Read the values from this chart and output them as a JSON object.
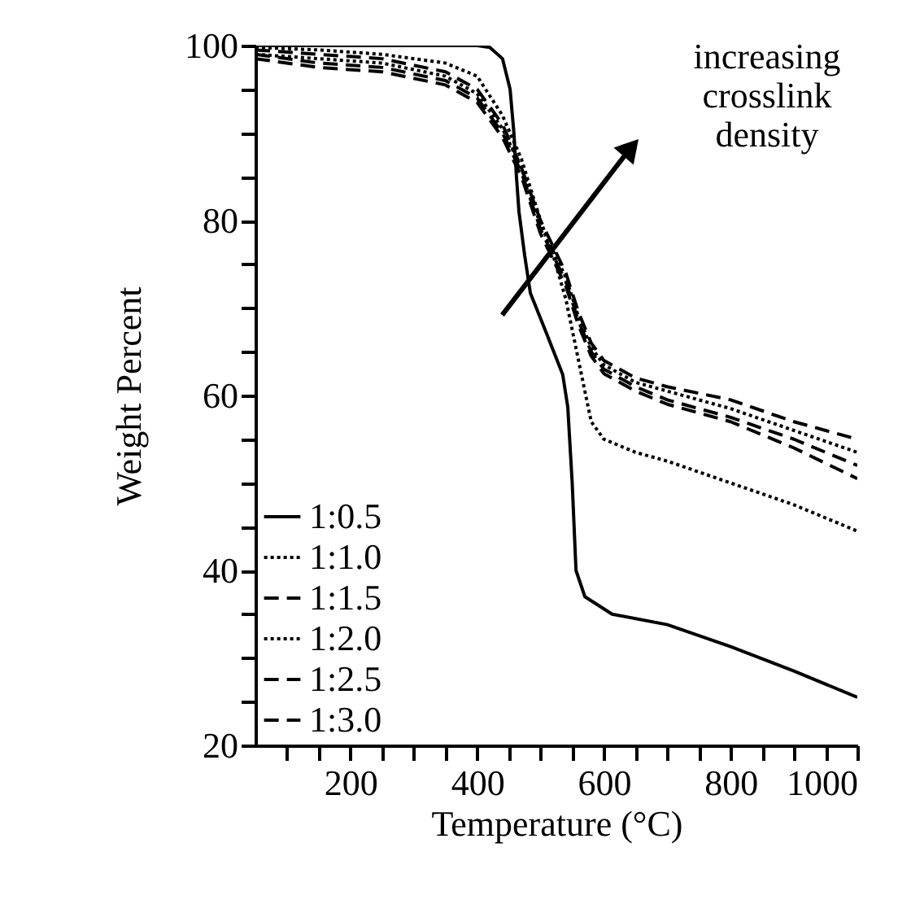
{
  "chart_data": {
    "type": "line",
    "xlabel": "Temperature (°C)",
    "ylabel": "Weight Percent",
    "xlim": [
      50,
      1000
    ],
    "ylim": [
      20,
      100
    ],
    "xticks": [
      {
        "value": 100,
        "label": null
      },
      {
        "value": 150,
        "label": null
      },
      200,
      {
        "value": 250,
        "label": null
      },
      {
        "value": 300,
        "label": null
      },
      {
        "value": 350,
        "label": null
      },
      400,
      {
        "value": 450,
        "label": null
      },
      {
        "value": 500,
        "label": null
      },
      {
        "value": 550,
        "label": null
      },
      600,
      {
        "value": 650,
        "label": null
      },
      {
        "value": 700,
        "label": null
      },
      {
        "value": 750,
        "label": null
      },
      800,
      {
        "value": 850,
        "label": null
      },
      {
        "value": 900,
        "label": null
      },
      {
        "value": 950,
        "label": null
      },
      1000
    ],
    "yticks": [
      20,
      {
        "value": 25,
        "label": null
      },
      {
        "value": 30,
        "label": null
      },
      {
        "value": 35,
        "label": null
      },
      40,
      {
        "value": 45,
        "label": null
      },
      {
        "value": 50,
        "label": null
      },
      {
        "value": 55,
        "label": null
      },
      60,
      {
        "value": 65,
        "label": null
      },
      {
        "value": 70,
        "label": null
      },
      {
        "value": 75,
        "label": null
      },
      80,
      {
        "value": 85,
        "label": null
      },
      {
        "value": 90,
        "label": null
      },
      {
        "value": 95,
        "label": null
      },
      100
    ],
    "grid": false,
    "legend": "bottom left",
    "marker": "none",
    "annotations": [
      "increasing crosslink density"
    ],
    "series": [
      {
        "name": "1:0.5",
        "color": "#000000",
        "line_style": "solid",
        "x": [
          50,
          400,
          420,
          440,
          452,
          458,
          462,
          466,
          475,
          484,
          510,
          535,
          543,
          550,
          556,
          570,
          613,
          700,
          800,
          900,
          1000
        ],
        "values": [
          100,
          100,
          99.8,
          98.5,
          95,
          90,
          85,
          81,
          76,
          71.7,
          67,
          62.4,
          58.7,
          50,
          40,
          37,
          35,
          33.8,
          31.3,
          28.5,
          25.5
        ]
      },
      {
        "name": "1:1.0",
        "color": "#000000",
        "line_style": "dotted",
        "x": [
          50,
          150,
          250,
          350,
          400,
          440,
          470,
          500,
          520,
          540,
          560,
          580,
          600,
          650,
          700,
          800,
          900,
          1000
        ],
        "values": [
          99.8,
          99.5,
          99,
          98,
          96.5,
          92,
          87,
          80,
          76,
          71,
          64,
          57,
          55,
          53.5,
          52.5,
          50,
          47.5,
          44.5
        ]
      },
      {
        "name": "1:1.5",
        "color": "#000000",
        "line_style": "dashed",
        "x": [
          50,
          150,
          250,
          350,
          400,
          440,
          470,
          500,
          540,
          560,
          580,
          600,
          650,
          700,
          800,
          900,
          1000
        ],
        "values": [
          99.5,
          99,
          98.5,
          97,
          95,
          91,
          86,
          80,
          74,
          69.5,
          66,
          64,
          62,
          61,
          59.5,
          57,
          55
        ]
      },
      {
        "name": "1:2.0",
        "color": "#000000",
        "line_style": "dotted",
        "x": [
          50,
          150,
          250,
          350,
          400,
          440,
          470,
          500,
          540,
          560,
          580,
          600,
          650,
          700,
          800,
          900,
          1000
        ],
        "values": [
          99,
          98.5,
          98,
          96.5,
          94.5,
          90.5,
          86,
          79.5,
          73.5,
          69,
          65.5,
          63.5,
          61.5,
          60.5,
          58.5,
          56,
          53.5
        ]
      },
      {
        "name": "1:2.5",
        "color": "#000000",
        "line_style": "dashed",
        "x": [
          50,
          150,
          250,
          350,
          400,
          440,
          470,
          500,
          540,
          560,
          580,
          600,
          650,
          700,
          800,
          900,
          1000
        ],
        "values": [
          99,
          98,
          97.5,
          96,
          94,
          90,
          85.5,
          79,
          73,
          68.5,
          65,
          63,
          61,
          59.5,
          57.5,
          55,
          52
        ]
      },
      {
        "name": "1:3.0",
        "color": "#000000",
        "line_style": "dashed",
        "x": [
          50,
          150,
          250,
          350,
          400,
          440,
          470,
          500,
          540,
          560,
          580,
          600,
          650,
          700,
          800,
          900,
          1000
        ],
        "values": [
          98.5,
          97.5,
          97,
          95.5,
          93.5,
          89.5,
          85,
          78.5,
          72.5,
          68,
          64.5,
          62.5,
          60.5,
          59,
          57,
          54,
          50.5
        ]
      }
    ]
  }
}
